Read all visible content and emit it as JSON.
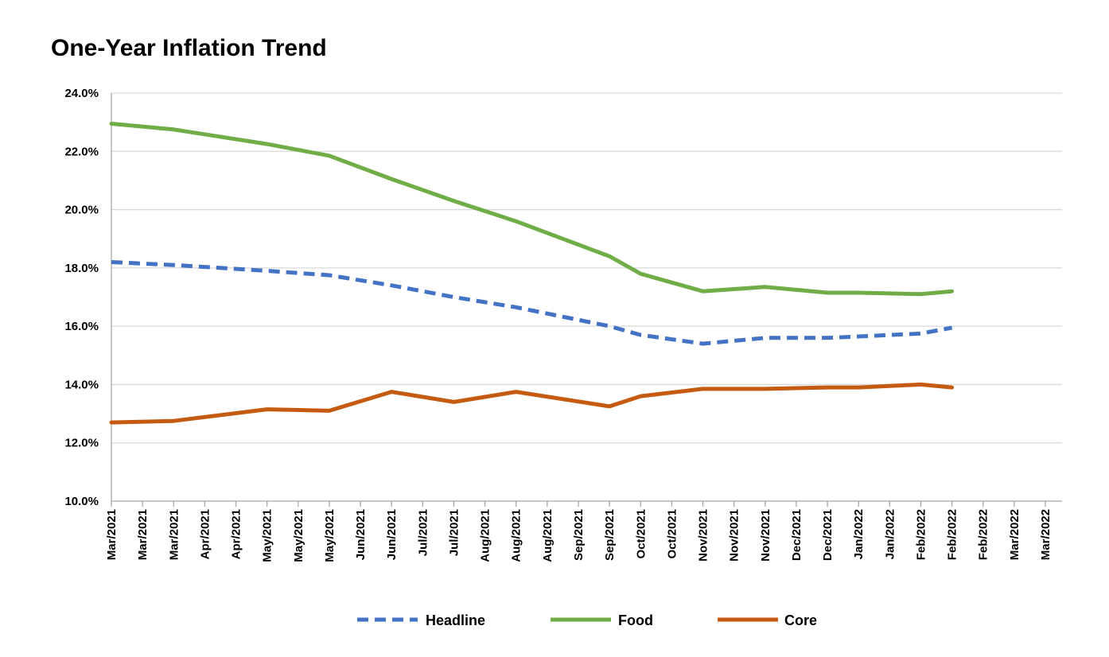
{
  "chart_data": {
    "type": "line",
    "title": "One-Year Inflation Trend",
    "xlabel": "",
    "ylabel": "",
    "ylim": [
      10.0,
      24.0
    ],
    "y_ticks": [
      "10.0%",
      "12.0%",
      "14.0%",
      "16.0%",
      "18.0%",
      "20.0%",
      "22.0%",
      "24.0%"
    ],
    "y_tick_values": [
      10,
      12,
      14,
      16,
      18,
      20,
      22,
      24
    ],
    "x_tick_labels": [
      "Mar/2021",
      "Mar/2021",
      "Mar/2021",
      "Apr/2021",
      "Apr/2021",
      "May/2021",
      "May/2021",
      "May/2021",
      "Jun/2021",
      "Jun/2021",
      "Jul/2021",
      "Jul/2021",
      "Aug/2021",
      "Aug/2021",
      "Aug/2021",
      "Sep/2021",
      "Sep/2021",
      "Oct/2021",
      "Oct/2021",
      "Nov/2021",
      "Nov/2021",
      "Nov/2021",
      "Dec/2021",
      "Dec/2021",
      "Jan/2022",
      "Jan/2022",
      "Feb/2022",
      "Feb/2022",
      "Feb/2022",
      "Mar/2022",
      "Mar/2022"
    ],
    "x_tick_dates": [
      "2021-03-01",
      "2021-03-11",
      "2021-03-21",
      "2021-04-01",
      "2021-04-11",
      "2021-05-01",
      "2021-05-11",
      "2021-05-21",
      "2021-06-01",
      "2021-06-11",
      "2021-07-01",
      "2021-07-11",
      "2021-08-01",
      "2021-08-11",
      "2021-08-21",
      "2021-09-01",
      "2021-09-11",
      "2021-10-01",
      "2021-10-11",
      "2021-11-01",
      "2021-11-11",
      "2021-11-21",
      "2021-12-01",
      "2021-12-11",
      "2022-01-01",
      "2022-01-11",
      "2022-02-01",
      "2022-02-11",
      "2022-02-21",
      "2022-03-01",
      "2022-03-11"
    ],
    "grid": true,
    "legend_position": "bottom",
    "series": [
      {
        "name": "Headline",
        "color": "#4472C4",
        "dash": true,
        "x": [
          "2021-03-01",
          "2021-03-21",
          "2021-05-01",
          "2021-05-21",
          "2021-06-11",
          "2021-07-11",
          "2021-08-11",
          "2021-09-11",
          "2021-10-01",
          "2021-11-01",
          "2021-11-21",
          "2021-12-11",
          "2022-01-01",
          "2022-02-01",
          "2022-02-11"
        ],
        "values": [
          18.2,
          18.1,
          17.9,
          17.75,
          17.4,
          17.0,
          16.65,
          16.0,
          15.7,
          15.4,
          15.6,
          15.6,
          15.65,
          15.75,
          15.95
        ]
      },
      {
        "name": "Food",
        "color": "#70AD47",
        "dash": false,
        "x": [
          "2021-03-01",
          "2021-03-21",
          "2021-05-01",
          "2021-05-21",
          "2021-06-11",
          "2021-07-11",
          "2021-08-11",
          "2021-09-11",
          "2021-10-01",
          "2021-11-01",
          "2021-11-21",
          "2021-12-11",
          "2022-01-01",
          "2022-02-01",
          "2022-02-11"
        ],
        "values": [
          22.95,
          22.75,
          22.25,
          21.85,
          21.05,
          20.3,
          19.6,
          18.4,
          17.8,
          17.2,
          17.35,
          17.15,
          17.15,
          17.1,
          17.2
        ]
      },
      {
        "name": "Core",
        "color": "#C55A11",
        "dash": false,
        "x": [
          "2021-03-01",
          "2021-03-21",
          "2021-05-01",
          "2021-05-21",
          "2021-06-11",
          "2021-07-11",
          "2021-08-11",
          "2021-09-11",
          "2021-10-01",
          "2021-11-01",
          "2021-11-21",
          "2021-12-11",
          "2022-01-01",
          "2022-02-01",
          "2022-02-11"
        ],
        "values": [
          12.7,
          12.75,
          13.15,
          13.1,
          13.75,
          13.4,
          13.75,
          13.25,
          13.6,
          13.85,
          13.85,
          13.9,
          13.9,
          14.0,
          13.9
        ]
      }
    ]
  }
}
